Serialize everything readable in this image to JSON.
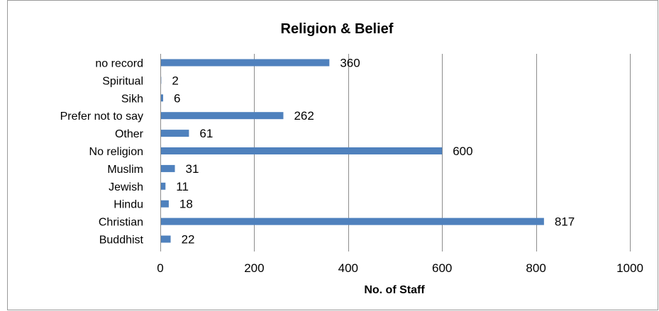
{
  "chart_data": {
    "type": "bar",
    "orientation": "horizontal",
    "title": "Religion & Belief",
    "xlabel": "No. of Staff",
    "ylabel": "",
    "categories": [
      "Buddhist",
      "Christian",
      "Hindu",
      "Jewish",
      "Muslim",
      "No religion",
      "Other",
      "Prefer not to say",
      "Sikh",
      "Spiritual",
      "no record"
    ],
    "values": [
      22,
      817,
      18,
      11,
      31,
      600,
      61,
      262,
      6,
      2,
      360
    ],
    "data_labels": [
      "22",
      "817",
      "18",
      "11",
      "31",
      "600",
      "61",
      "262",
      "6",
      "2",
      "360"
    ],
    "xlim": [
      0,
      1000
    ],
    "xticks": [
      0,
      200,
      400,
      600,
      800,
      1000
    ],
    "xtick_labels": [
      "0",
      "200",
      "400",
      "600",
      "800",
      "1000"
    ],
    "grid": "vertical",
    "legend": "none",
    "bar_color": "#4F81BD",
    "grid_color": "#8C8C8C"
  }
}
